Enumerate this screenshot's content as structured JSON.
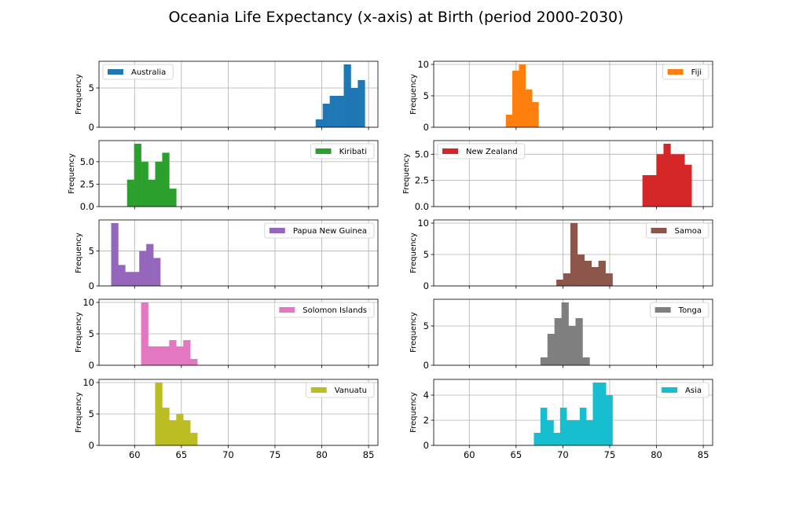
{
  "chart_data": {
    "type": "bar",
    "title": "Oceania Life Expectancy (x-axis) at Birth (period 2000-2030)",
    "ylabel": "Frequency",
    "xlim": [
      56.2,
      86
    ],
    "xticks": [
      60,
      65,
      70,
      75,
      80,
      85
    ],
    "grid": true,
    "legend_placement": "upper right (Australia: upper left)",
    "panels": [
      {
        "name": "Australia",
        "color": "#1f77b4",
        "legend": "upper-left",
        "ylim": [
          0,
          8.4
        ],
        "yticks": [
          0,
          5
        ],
        "ytick_labels": [
          "0",
          "5"
        ],
        "bins": [
          {
            "x0": 79.35,
            "x1": 80.1,
            "y": 1
          },
          {
            "x0": 80.1,
            "x1": 80.85,
            "y": 3
          },
          {
            "x0": 80.85,
            "x1": 81.6,
            "y": 4
          },
          {
            "x0": 81.6,
            "x1": 82.35,
            "y": 4
          },
          {
            "x0": 82.35,
            "x1": 83.1,
            "y": 8
          },
          {
            "x0": 83.1,
            "x1": 83.85,
            "y": 5
          },
          {
            "x0": 83.85,
            "x1": 84.6,
            "y": 6
          }
        ]
      },
      {
        "name": "Fiji",
        "color": "#ff7f0e",
        "legend": "upper-right",
        "ylim": [
          0,
          10.5
        ],
        "yticks": [
          0,
          5,
          10
        ],
        "ytick_labels": [
          "0",
          "5",
          "10"
        ],
        "bins": [
          {
            "x0": 63.9,
            "x1": 64.6,
            "y": 2
          },
          {
            "x0": 64.6,
            "x1": 65.3,
            "y": 9
          },
          {
            "x0": 65.3,
            "x1": 66.0,
            "y": 10
          },
          {
            "x0": 66.0,
            "x1": 66.7,
            "y": 6
          },
          {
            "x0": 66.7,
            "x1": 67.4,
            "y": 4
          }
        ]
      },
      {
        "name": "Kiribati",
        "color": "#2ca02c",
        "legend": "upper-right",
        "ylim": [
          0,
          7.35
        ],
        "yticks": [
          0,
          2.5,
          5.0
        ],
        "ytick_labels": [
          "0.0",
          "2.5",
          "5.0"
        ],
        "bins": [
          {
            "x0": 59.2,
            "x1": 59.95,
            "y": 3
          },
          {
            "x0": 59.95,
            "x1": 60.7,
            "y": 7
          },
          {
            "x0": 60.7,
            "x1": 61.45,
            "y": 5
          },
          {
            "x0": 61.45,
            "x1": 62.2,
            "y": 3
          },
          {
            "x0": 62.2,
            "x1": 62.95,
            "y": 5
          },
          {
            "x0": 62.95,
            "x1": 63.7,
            "y": 6
          },
          {
            "x0": 63.7,
            "x1": 64.45,
            "y": 2
          }
        ]
      },
      {
        "name": "New Zealand",
        "color": "#d62728",
        "legend": "upper-left",
        "ylim": [
          0,
          6.3
        ],
        "yticks": [
          0,
          2.5,
          5.0
        ],
        "ytick_labels": [
          "0.0",
          "2.5",
          "5.0"
        ],
        "bins": [
          {
            "x0": 78.5,
            "x1": 79.25,
            "y": 3
          },
          {
            "x0": 79.25,
            "x1": 80.0,
            "y": 3
          },
          {
            "x0": 80.0,
            "x1": 80.75,
            "y": 5
          },
          {
            "x0": 80.75,
            "x1": 81.5,
            "y": 6
          },
          {
            "x0": 81.5,
            "x1": 82.25,
            "y": 5
          },
          {
            "x0": 82.25,
            "x1": 83.0,
            "y": 5
          },
          {
            "x0": 83.0,
            "x1": 83.75,
            "y": 4
          }
        ]
      },
      {
        "name": "Papua New Guinea",
        "color": "#9467bd",
        "legend": "upper-right",
        "ylim": [
          0,
          9.45
        ],
        "yticks": [
          0,
          5
        ],
        "ytick_labels": [
          "0",
          "5"
        ],
        "bins": [
          {
            "x0": 57.5,
            "x1": 58.25,
            "y": 9
          },
          {
            "x0": 58.25,
            "x1": 59.0,
            "y": 3
          },
          {
            "x0": 59.0,
            "x1": 59.75,
            "y": 2
          },
          {
            "x0": 59.75,
            "x1": 60.5,
            "y": 2
          },
          {
            "x0": 60.5,
            "x1": 61.25,
            "y": 5
          },
          {
            "x0": 61.25,
            "x1": 62.0,
            "y": 6
          },
          {
            "x0": 62.0,
            "x1": 62.75,
            "y": 4
          }
        ]
      },
      {
        "name": "Samoa",
        "color": "#8c564b",
        "legend": "upper-right",
        "ylim": [
          0,
          10.5
        ],
        "yticks": [
          0,
          5,
          10
        ],
        "ytick_labels": [
          "0",
          "5",
          "10"
        ],
        "bins": [
          {
            "x0": 69.3,
            "x1": 70.05,
            "y": 1
          },
          {
            "x0": 70.05,
            "x1": 70.8,
            "y": 2
          },
          {
            "x0": 70.8,
            "x1": 71.55,
            "y": 10
          },
          {
            "x0": 71.55,
            "x1": 72.3,
            "y": 5
          },
          {
            "x0": 72.3,
            "x1": 73.05,
            "y": 4
          },
          {
            "x0": 73.05,
            "x1": 73.8,
            "y": 3
          },
          {
            "x0": 73.8,
            "x1": 74.55,
            "y": 4
          },
          {
            "x0": 74.55,
            "x1": 75.3,
            "y": 2
          }
        ]
      },
      {
        "name": "Solomon Islands",
        "color": "#e377c2",
        "legend": "upper-right",
        "ylim": [
          0,
          10.5
        ],
        "yticks": [
          0,
          5,
          10
        ],
        "ytick_labels": [
          "0",
          "5",
          "10"
        ],
        "bins": [
          {
            "x0": 60.7,
            "x1": 61.45,
            "y": 10
          },
          {
            "x0": 61.45,
            "x1": 62.2,
            "y": 3
          },
          {
            "x0": 62.2,
            "x1": 62.95,
            "y": 3
          },
          {
            "x0": 62.95,
            "x1": 63.7,
            "y": 3
          },
          {
            "x0": 63.7,
            "x1": 64.45,
            "y": 4
          },
          {
            "x0": 64.45,
            "x1": 65.2,
            "y": 3
          },
          {
            "x0": 65.2,
            "x1": 65.95,
            "y": 4
          },
          {
            "x0": 65.95,
            "x1": 66.7,
            "y": 1
          }
        ]
      },
      {
        "name": "Tonga",
        "color": "#7f7f7f",
        "legend": "upper-right",
        "ylim": [
          0,
          8.4
        ],
        "yticks": [
          0,
          5
        ],
        "ytick_labels": [
          "0",
          "5"
        ],
        "bins": [
          {
            "x0": 67.6,
            "x1": 68.35,
            "y": 1
          },
          {
            "x0": 68.35,
            "x1": 69.1,
            "y": 4
          },
          {
            "x0": 69.1,
            "x1": 69.85,
            "y": 6
          },
          {
            "x0": 69.85,
            "x1": 70.6,
            "y": 8
          },
          {
            "x0": 70.6,
            "x1": 71.35,
            "y": 5
          },
          {
            "x0": 71.35,
            "x1": 72.1,
            "y": 6
          },
          {
            "x0": 72.1,
            "x1": 72.85,
            "y": 1
          }
        ]
      },
      {
        "name": "Vanuatu",
        "color": "#bcbd22",
        "legend": "upper-right",
        "ylim": [
          0,
          10.5
        ],
        "yticks": [
          0,
          5,
          10
        ],
        "ytick_labels": [
          "0",
          "5",
          "10"
        ],
        "bins": [
          {
            "x0": 62.2,
            "x1": 62.95,
            "y": 10
          },
          {
            "x0": 62.95,
            "x1": 63.7,
            "y": 6
          },
          {
            "x0": 63.7,
            "x1": 64.45,
            "y": 4
          },
          {
            "x0": 64.45,
            "x1": 65.2,
            "y": 5
          },
          {
            "x0": 65.2,
            "x1": 65.95,
            "y": 4
          },
          {
            "x0": 65.95,
            "x1": 66.7,
            "y": 2
          }
        ]
      },
      {
        "name": "Asia",
        "color": "#17becf",
        "legend": "upper-right",
        "ylim": [
          0,
          5.25
        ],
        "yticks": [
          0,
          2,
          4
        ],
        "ytick_labels": [
          "0",
          "2",
          "4"
        ],
        "bins": [
          {
            "x0": 66.9,
            "x1": 67.6,
            "y": 1
          },
          {
            "x0": 67.6,
            "x1": 68.3,
            "y": 3
          },
          {
            "x0": 68.3,
            "x1": 69.0,
            "y": 2
          },
          {
            "x0": 69.0,
            "x1": 69.7,
            "y": 1
          },
          {
            "x0": 69.7,
            "x1": 70.4,
            "y": 3
          },
          {
            "x0": 70.4,
            "x1": 71.1,
            "y": 2
          },
          {
            "x0": 71.1,
            "x1": 71.8,
            "y": 2
          },
          {
            "x0": 71.8,
            "x1": 72.5,
            "y": 3
          },
          {
            "x0": 72.5,
            "x1": 73.2,
            "y": 2
          },
          {
            "x0": 73.2,
            "x1": 73.9,
            "y": 5
          },
          {
            "x0": 73.9,
            "x1": 74.6,
            "y": 5
          },
          {
            "x0": 74.6,
            "x1": 75.3,
            "y": 4
          }
        ]
      }
    ]
  }
}
